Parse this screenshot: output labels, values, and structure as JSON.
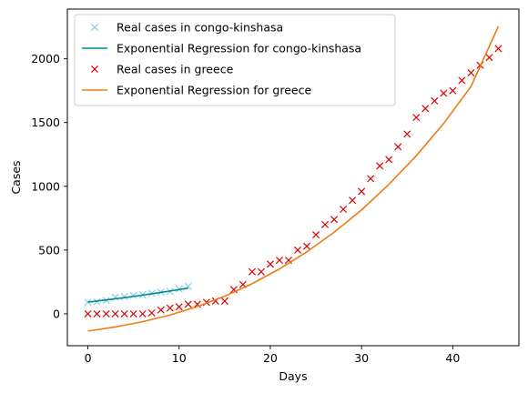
{
  "chart_data": {
    "type": "scatter",
    "title": "",
    "xlabel": "Days",
    "ylabel": "Cases",
    "xlim": [
      -2.25,
      47.25
    ],
    "ylim": [
      -250,
      2390
    ],
    "xticks": [
      0,
      10,
      20,
      30,
      40
    ],
    "yticks": [
      0,
      500,
      1000,
      1500,
      2000
    ],
    "grid": false,
    "legend_position": "top-left",
    "series": [
      {
        "name": "Real cases in congo-kinshasa",
        "kind": "markers",
        "marker": "x",
        "color": "#87ceeb",
        "x": [
          0,
          1,
          2,
          3,
          4,
          5,
          6,
          7,
          8,
          9,
          10,
          11
        ],
        "y": [
          90,
          95,
          105,
          130,
          135,
          145,
          150,
          160,
          170,
          175,
          195,
          215
        ]
      },
      {
        "name": "Exponential Regression for congo-kinshasa",
        "kind": "line",
        "color": "#008b8b",
        "x": [
          0,
          1,
          2,
          3,
          4,
          5,
          6,
          7,
          8,
          9,
          10,
          11
        ],
        "y": [
          92,
          100,
          109,
          118,
          127,
          137,
          147,
          157,
          168,
          179,
          190,
          202
        ]
      },
      {
        "name": "Real cases in greece",
        "kind": "markers",
        "marker": "x",
        "color": "#dd0000",
        "x": [
          0,
          1,
          2,
          3,
          4,
          5,
          6,
          7,
          8,
          9,
          10,
          11,
          12,
          13,
          14,
          15,
          16,
          17,
          18,
          19,
          20,
          21,
          22,
          23,
          24,
          25,
          26,
          27,
          28,
          29,
          30,
          31,
          32,
          33,
          34,
          35,
          36,
          37,
          38,
          39,
          40,
          41,
          42,
          43,
          44,
          45
        ],
        "y": [
          0,
          0,
          0,
          0,
          0,
          0,
          0,
          7,
          30,
          45,
          55,
          75,
          75,
          90,
          100,
          100,
          190,
          230,
          330,
          330,
          390,
          420,
          420,
          500,
          530,
          620,
          700,
          740,
          820,
          890,
          960,
          1060,
          1160,
          1210,
          1310,
          1410,
          1540,
          1610,
          1670,
          1730,
          1750,
          1830,
          1890,
          1950,
          2010,
          2080
        ]
      },
      {
        "name": "Exponential Regression for greece",
        "kind": "line",
        "color": "#ef7b11",
        "x": [
          0,
          3,
          6,
          9,
          12,
          15,
          18,
          21,
          24,
          27,
          30,
          33,
          36,
          39,
          42,
          45
        ],
        "y": [
          -135,
          -103,
          -62,
          -9,
          57,
          138,
          236,
          352,
          486,
          640,
          815,
          1015,
          1240,
          1493,
          1783,
          2255
        ]
      }
    ]
  }
}
